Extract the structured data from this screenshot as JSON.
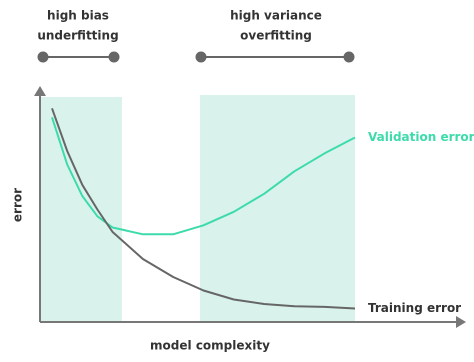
{
  "chart_data": {
    "type": "line",
    "x": [
      0,
      0.5,
      1,
      1.5,
      2,
      3,
      4,
      5,
      6,
      7,
      8,
      9,
      10
    ],
    "xlim": [
      0,
      10
    ],
    "ylim": [
      0,
      10
    ],
    "xlabel": "model complexity",
    "ylabel": "error",
    "series": [
      {
        "name": "Validation error",
        "color": "#3ddbab",
        "values": [
          9.1,
          7.0,
          5.6,
          4.7,
          4.2,
          3.9,
          3.9,
          4.3,
          4.9,
          5.7,
          6.7,
          7.5,
          8.2
        ]
      },
      {
        "name": "Training error",
        "color": "#666666",
        "values": [
          9.5,
          7.6,
          6.1,
          5.0,
          4.0,
          2.8,
          2.0,
          1.4,
          1.0,
          0.8,
          0.7,
          0.67,
          0.6
        ]
      }
    ],
    "annotations": [
      {
        "lines": [
          "high bias",
          "underfitting"
        ]
      },
      {
        "lines": [
          "high variance",
          "overfitting"
        ]
      }
    ]
  }
}
